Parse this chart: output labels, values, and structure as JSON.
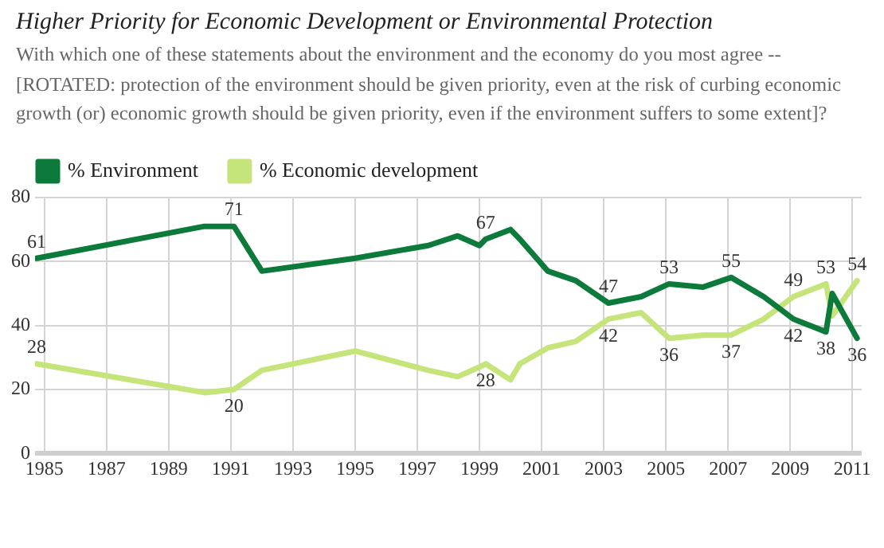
{
  "chart_data": {
    "type": "line",
    "title": "Higher Priority for Economic Development or Environmental Protection",
    "subtitle": "With which one of these statements about the environment and the economy do you most agree -- [ROTATED: protection of the environment should be given priority, even at the risk of curbing economic growth (or) economic growth should be given priority, even if the environment suffers to some extent]?",
    "x": [
      1984.75,
      1990.15,
      1991.1,
      1992.0,
      1995.0,
      1997.35,
      1998.3,
      1999.0,
      1999.2,
      2000.0,
      2000.3,
      2001.2,
      2002.1,
      2003.15,
      2004.2,
      2005.1,
      2006.2,
      2007.1,
      2008.15,
      2009.1,
      2010.15,
      2010.35,
      2011.15
    ],
    "series": [
      {
        "name": "% Environment",
        "color": "#0b7a3a",
        "values": [
          61,
          71,
          71,
          57,
          61,
          65,
          68,
          65,
          67,
          70,
          67,
          57,
          54,
          47,
          49,
          53,
          52,
          55,
          49,
          42,
          38,
          50,
          36
        ],
        "value_labels": [
          "61",
          null,
          "71",
          null,
          null,
          null,
          null,
          null,
          "67",
          null,
          null,
          null,
          null,
          "47",
          null,
          "53",
          null,
          "55",
          null,
          "42",
          "38",
          null,
          "36"
        ]
      },
      {
        "name": "% Economic development",
        "color": "#c5e47a",
        "values": [
          28,
          19,
          20,
          26,
          32,
          26,
          24,
          27,
          28,
          23,
          28,
          33,
          35,
          42,
          44,
          36,
          37,
          37,
          42,
          49,
          53,
          43,
          54
        ],
        "value_labels": [
          "28",
          null,
          "20",
          null,
          null,
          null,
          null,
          null,
          "28",
          null,
          null,
          null,
          null,
          "42",
          null,
          "36",
          null,
          "37",
          null,
          "49",
          "53",
          null,
          "54"
        ]
      }
    ],
    "xlim": [
      1984.7,
      2011.3
    ],
    "xticks": [
      1985,
      1987,
      1989,
      1991,
      1993,
      1995,
      1997,
      1999,
      2001,
      2003,
      2005,
      2007,
      2009,
      2011
    ],
    "ylim": [
      0,
      80
    ],
    "yticks": [
      0,
      20,
      40,
      60,
      80
    ],
    "grid": true,
    "legend": "top left",
    "marker": "none",
    "line_style": "solid"
  }
}
